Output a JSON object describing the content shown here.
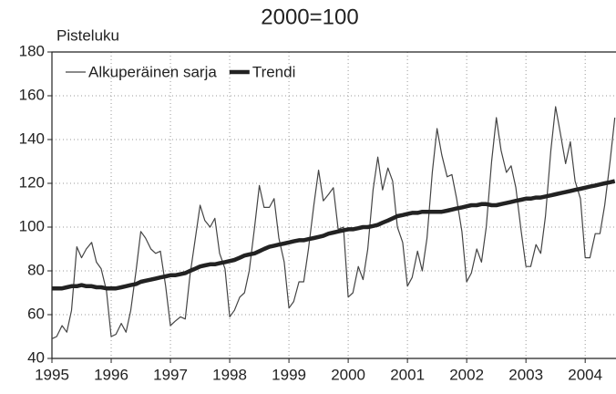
{
  "chart_data": {
    "type": "line",
    "title": "2000=100",
    "ylabel": "Pisteluku",
    "x": [
      1995.0,
      1995.08,
      1995.17,
      1995.25,
      1995.33,
      1995.42,
      1995.5,
      1995.58,
      1995.67,
      1995.75,
      1995.83,
      1995.92,
      1996.0,
      1996.08,
      1996.17,
      1996.25,
      1996.33,
      1996.42,
      1996.5,
      1996.58,
      1996.67,
      1996.75,
      1996.83,
      1996.92,
      1997.0,
      1997.08,
      1997.17,
      1997.25,
      1997.33,
      1997.42,
      1997.5,
      1997.58,
      1997.67,
      1997.75,
      1997.83,
      1997.92,
      1998.0,
      1998.08,
      1998.17,
      1998.25,
      1998.33,
      1998.42,
      1998.5,
      1998.58,
      1998.67,
      1998.75,
      1998.83,
      1998.92,
      1999.0,
      1999.08,
      1999.17,
      1999.25,
      1999.33,
      1999.42,
      1999.5,
      1999.58,
      1999.67,
      1999.75,
      1999.83,
      1999.92,
      2000.0,
      2000.08,
      2000.17,
      2000.25,
      2000.33,
      2000.42,
      2000.5,
      2000.58,
      2000.67,
      2000.75,
      2000.83,
      2000.92,
      2001.0,
      2001.08,
      2001.17,
      2001.25,
      2001.33,
      2001.42,
      2001.5,
      2001.58,
      2001.67,
      2001.75,
      2001.83,
      2001.92,
      2002.0,
      2002.08,
      2002.17,
      2002.25,
      2002.33,
      2002.42,
      2002.5,
      2002.58,
      2002.67,
      2002.75,
      2002.83,
      2002.92,
      2003.0,
      2003.08,
      2003.17,
      2003.25,
      2003.33,
      2003.42,
      2003.5,
      2003.58,
      2003.67,
      2003.75,
      2003.83,
      2003.92,
      2004.0,
      2004.08,
      2004.17,
      2004.25,
      2004.33,
      2004.42,
      2004.5
    ],
    "series": [
      {
        "name": "Alkuperäinen sarja",
        "color": "#444444",
        "width": 1.2,
        "values": [
          49,
          50,
          55,
          52,
          62,
          91,
          86,
          90,
          93,
          84,
          81,
          71,
          50,
          51,
          56,
          52,
          62,
          80,
          98,
          95,
          90,
          88,
          89,
          73,
          55,
          57,
          59,
          58,
          78,
          95,
          110,
          103,
          100,
          104,
          88,
          81,
          59,
          62,
          68,
          70,
          80,
          100,
          119,
          109,
          109,
          113,
          95,
          84,
          63,
          66,
          75,
          75,
          90,
          110,
          126,
          112,
          115,
          118,
          99,
          100,
          68,
          70,
          82,
          76,
          90,
          117,
          132,
          117,
          127,
          121,
          100,
          93,
          73,
          77,
          89,
          80,
          95,
          125,
          145,
          133,
          123,
          124,
          113,
          98,
          75,
          79,
          90,
          84,
          100,
          130,
          150,
          135,
          125,
          128,
          118,
          98,
          82,
          82,
          92,
          88,
          105,
          135,
          155,
          143,
          129,
          139,
          121,
          113,
          86,
          86,
          97,
          97,
          110,
          130,
          150
        ]
      },
      {
        "name": "Trendi",
        "color": "#222222",
        "width": 4.5,
        "values": [
          72,
          72,
          72,
          72.5,
          73,
          73,
          73.5,
          73,
          73,
          72.5,
          72.5,
          72,
          72,
          72,
          72.5,
          73,
          73.5,
          74,
          75,
          75.5,
          76,
          76.5,
          77,
          77.5,
          78,
          78,
          78.5,
          79,
          80,
          81,
          82,
          82.5,
          83,
          83,
          83.5,
          84,
          84.5,
          85,
          86,
          87,
          87.5,
          88,
          89,
          90,
          91,
          91.5,
          92,
          92.5,
          93,
          93.5,
          94,
          94,
          94.5,
          95,
          95.5,
          96,
          97,
          97.5,
          98,
          98.5,
          99,
          99,
          99.5,
          100,
          100,
          100.5,
          101,
          102,
          103,
          104,
          105,
          105.5,
          106,
          106.5,
          106.5,
          107,
          107,
          107,
          107,
          107,
          107.5,
          108,
          108.5,
          109,
          109.5,
          110,
          110,
          110.5,
          110.5,
          110,
          110,
          110.5,
          111,
          111.5,
          112,
          112.5,
          113,
          113,
          113.5,
          113.5,
          114,
          114.5,
          115,
          115.5,
          116,
          116.5,
          117,
          117.5,
          118,
          118.5,
          119,
          119.5,
          120,
          120.5,
          121
        ]
      }
    ],
    "xlim": [
      1995,
      2004.52
    ],
    "xticks": [
      1995,
      1996,
      1997,
      1998,
      1999,
      2000,
      2001,
      2002,
      2003,
      2004
    ],
    "ylim": [
      40,
      180
    ],
    "yticks": [
      40,
      60,
      80,
      100,
      120,
      140,
      160,
      180
    ],
    "grid": true,
    "legend": "top-left"
  }
}
